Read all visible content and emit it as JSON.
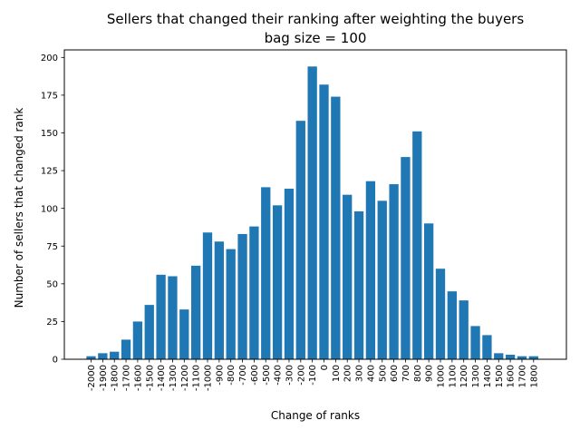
{
  "chart_data": {
    "type": "bar",
    "title_line1": "Sellers that changed their ranking after weighting the buyers",
    "title_line2": "bag size = 100",
    "xlabel": "Change of ranks",
    "ylabel": "Number of sellers that changed rank",
    "ylim": [
      0,
      205
    ],
    "yticks": [
      0,
      25,
      50,
      75,
      100,
      125,
      150,
      175,
      200
    ],
    "grid": false,
    "legend": "none",
    "bar_color": "#1f77b4",
    "categories": [
      "-2000",
      "-1900",
      "-1800",
      "-1700",
      "-1600",
      "-1500",
      "-1400",
      "-1300",
      "-1200",
      "-1100",
      "-1000",
      "-900",
      "-800",
      "-700",
      "-600",
      "-500",
      "-400",
      "-300",
      "-200",
      "-100",
      "0",
      "100",
      "200",
      "300",
      "400",
      "500",
      "600",
      "700",
      "800",
      "900",
      "1000",
      "1100",
      "1200",
      "1300",
      "1400",
      "1500",
      "1600",
      "1700",
      "1800"
    ],
    "values": [
      2,
      4,
      5,
      13,
      25,
      36,
      56,
      55,
      33,
      62,
      84,
      78,
      73,
      83,
      88,
      114,
      102,
      113,
      158,
      194,
      182,
      174,
      109,
      98,
      118,
      105,
      116,
      134,
      151,
      90,
      60,
      45,
      39,
      22,
      16,
      4,
      3,
      2,
      2
    ]
  }
}
